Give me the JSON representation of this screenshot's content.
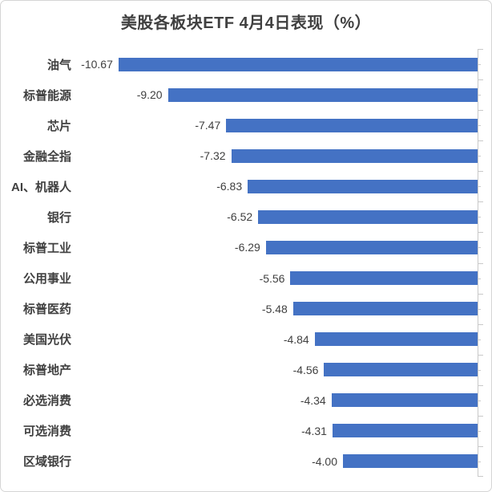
{
  "chart_data": {
    "type": "bar",
    "orientation": "horizontal",
    "title": "美股各板块ETF 4月4日表现（%）",
    "categories": [
      "油气",
      "标普能源",
      "芯片",
      "金融全指",
      "AI、机器人",
      "银行",
      "标普工业",
      "公用事业",
      "标普医药",
      "美国光伏",
      "标普地产",
      "必选消费",
      "可选消费",
      "区域银行"
    ],
    "values": [
      -10.67,
      -9.2,
      -7.47,
      -7.32,
      -6.83,
      -6.52,
      -6.29,
      -5.56,
      -5.48,
      -4.84,
      -4.56,
      -4.34,
      -4.31,
      -4.0
    ],
    "value_labels": [
      "-10.67",
      "-9.20",
      "-7.47",
      "-7.32",
      "-6.83",
      "-6.52",
      "-6.29",
      "-5.56",
      "-5.48",
      "-4.84",
      "-4.56",
      "-4.34",
      "-4.31",
      "-4.00"
    ],
    "xlabel": "",
    "ylabel": "",
    "xlim": [
      -12,
      0
    ],
    "grid": false,
    "legend": false,
    "data_label_position": "outside-end",
    "axis_position": "right",
    "colors": {
      "bar": "#4472C4",
      "text": "#404040",
      "axis": "#C9C9C9"
    }
  }
}
